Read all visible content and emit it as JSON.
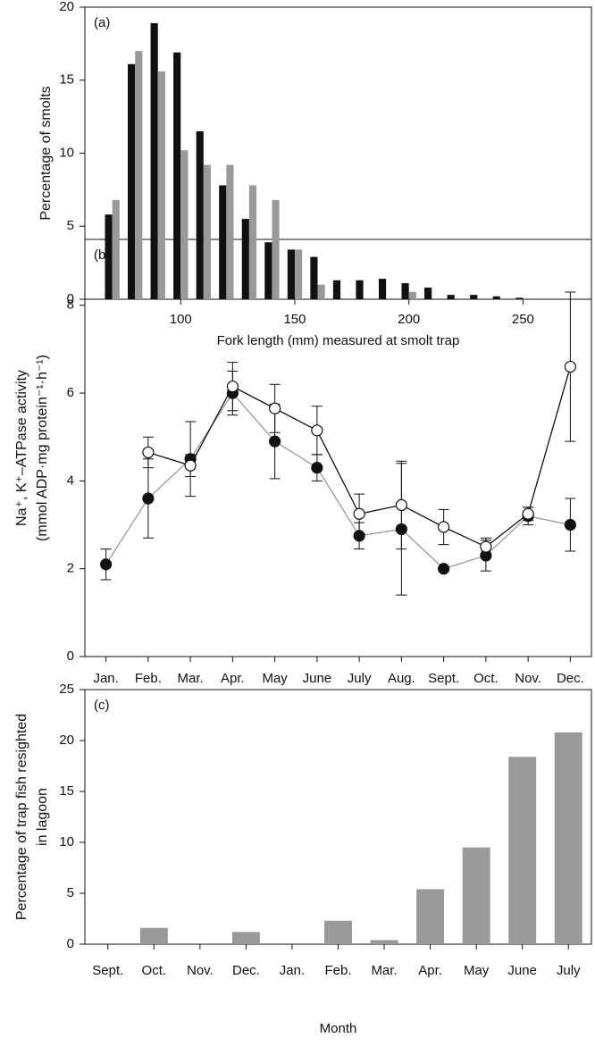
{
  "chart_data": [
    {
      "type": "bar",
      "annotation": "(a)",
      "xlabel": "Fork length (mm) measured at smolt trap",
      "ylabel": "Percentage of smolts",
      "x": [
        70,
        80,
        90,
        100,
        110,
        120,
        130,
        140,
        150,
        160,
        170,
        180,
        190,
        200,
        210,
        220,
        230,
        240,
        250
      ],
      "series": [
        {
          "color": "#111111",
          "values": [
            5.8,
            16.1,
            18.9,
            16.9,
            11.5,
            7.8,
            5.5,
            3.9,
            3.4,
            2.9,
            1.3,
            1.3,
            1.4,
            1.1,
            0.8,
            0.3,
            0.3,
            0.2,
            0.1
          ]
        },
        {
          "color": "#999999",
          "values": [
            6.8,
            17.0,
            15.6,
            10.2,
            9.2,
            9.2,
            7.8,
            6.8,
            3.4,
            1.0,
            0,
            0,
            0,
            0.5,
            0,
            0,
            0,
            0,
            0
          ]
        }
      ],
      "xlim": [
        58,
        280
      ],
      "xticks": [
        100,
        150,
        200,
        250
      ],
      "ylim": [
        0,
        20
      ],
      "yticks": [
        0,
        5,
        10,
        15,
        20
      ]
    },
    {
      "type": "line",
      "annotation": "(b)",
      "ylabel": [
        "Na⁺, K⁺–ATPase activity",
        "(mmol ADP·mg protein⁻¹·h⁻¹)"
      ],
      "categories": [
        "Jan.",
        "Feb.",
        "Mar.",
        "Apr.",
        "May",
        "June",
        "July",
        "Aug.",
        "Sept.",
        "Oct.",
        "Nov.",
        "Dec."
      ],
      "series": [
        {
          "color": "#999999",
          "marker": "filled",
          "values": [
            2.1,
            3.6,
            4.5,
            6.0,
            4.9,
            4.3,
            2.75,
            2.9,
            2.0,
            2.3,
            3.2,
            3.0
          ],
          "errors": [
            0.35,
            0.9,
            0.85,
            0.5,
            0.85,
            0.3,
            0.3,
            1.5,
            0,
            0.35,
            0.2,
            0.6
          ]
        },
        {
          "color": "#111111",
          "marker": "open",
          "values": [
            null,
            4.65,
            4.35,
            6.15,
            5.65,
            5.15,
            3.25,
            3.45,
            2.95,
            2.5,
            3.25,
            6.6
          ],
          "errors": [
            null,
            0.35,
            0.25,
            0.55,
            0.55,
            0.55,
            0.45,
            1.0,
            0.4,
            0.2,
            0.15,
            1.7
          ]
        }
      ],
      "ylim": [
        0,
        9.5
      ],
      "yticks": [
        0,
        2,
        4,
        6,
        8
      ]
    },
    {
      "type": "bar",
      "annotation": "(c)",
      "xlabel": "Month",
      "ylabel": [
        "Percentage of trap fish resighted",
        "in lagoon"
      ],
      "categories": [
        "Sept.",
        "Oct.",
        "Nov.",
        "Dec.",
        "Jan.",
        "Feb.",
        "Mar.",
        "Apr.",
        "May",
        "June",
        "July"
      ],
      "values": [
        0,
        1.6,
        0,
        1.2,
        0,
        2.3,
        0.4,
        5.4,
        9.5,
        18.4,
        20.8
      ],
      "color": "#999999",
      "ylim": [
        0,
        25
      ],
      "yticks": [
        0,
        5,
        10,
        15,
        20,
        25
      ]
    }
  ]
}
